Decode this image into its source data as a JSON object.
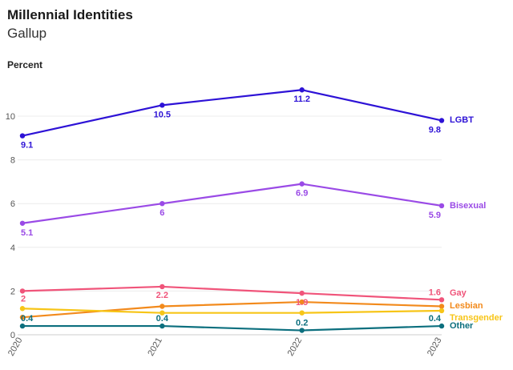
{
  "chart_data": {
    "type": "line",
    "title": "Millennial Identities",
    "subtitle": "Gallup",
    "ylabel": "Percent",
    "xlabel": "",
    "categories": [
      "2020",
      "2021",
      "2022",
      "2023"
    ],
    "ylim": [
      0,
      12
    ],
    "yticks": [
      0,
      2,
      4,
      6,
      8,
      10
    ],
    "grid": true,
    "legend": "direct labels at right",
    "series": [
      {
        "name": "LGBT",
        "color": "#2d12d6",
        "values": [
          9.1,
          10.5,
          11.2,
          9.8
        ],
        "labels": [
          "9.1",
          "10.5",
          "11.2",
          "9.8"
        ]
      },
      {
        "name": "Bisexual",
        "color": "#9a4ae6",
        "values": [
          5.1,
          6,
          6.9,
          5.9
        ],
        "labels": [
          "5.1",
          "6",
          "6.9",
          "5.9"
        ]
      },
      {
        "name": "Gay",
        "color": "#f0547a",
        "values": [
          2,
          2.2,
          1.9,
          1.6
        ],
        "labels": [
          "2",
          "2.2",
          "1.9",
          "1.6"
        ]
      },
      {
        "name": "Lesbian",
        "color": "#f28a1c",
        "values": [
          0.8,
          1.3,
          1.5,
          1.3
        ],
        "labels": [
          "",
          "",
          "",
          ""
        ]
      },
      {
        "name": "Transgender",
        "color": "#f7c518",
        "values": [
          1.2,
          1,
          1,
          1.1
        ],
        "labels": [
          "",
          "",
          "",
          ""
        ]
      },
      {
        "name": "Other",
        "color": "#0c6f7e",
        "values": [
          0.4,
          0.4,
          0.2,
          0.4
        ],
        "labels": [
          "0.4",
          "0.4",
          "0.2",
          "0.4"
        ]
      }
    ]
  }
}
